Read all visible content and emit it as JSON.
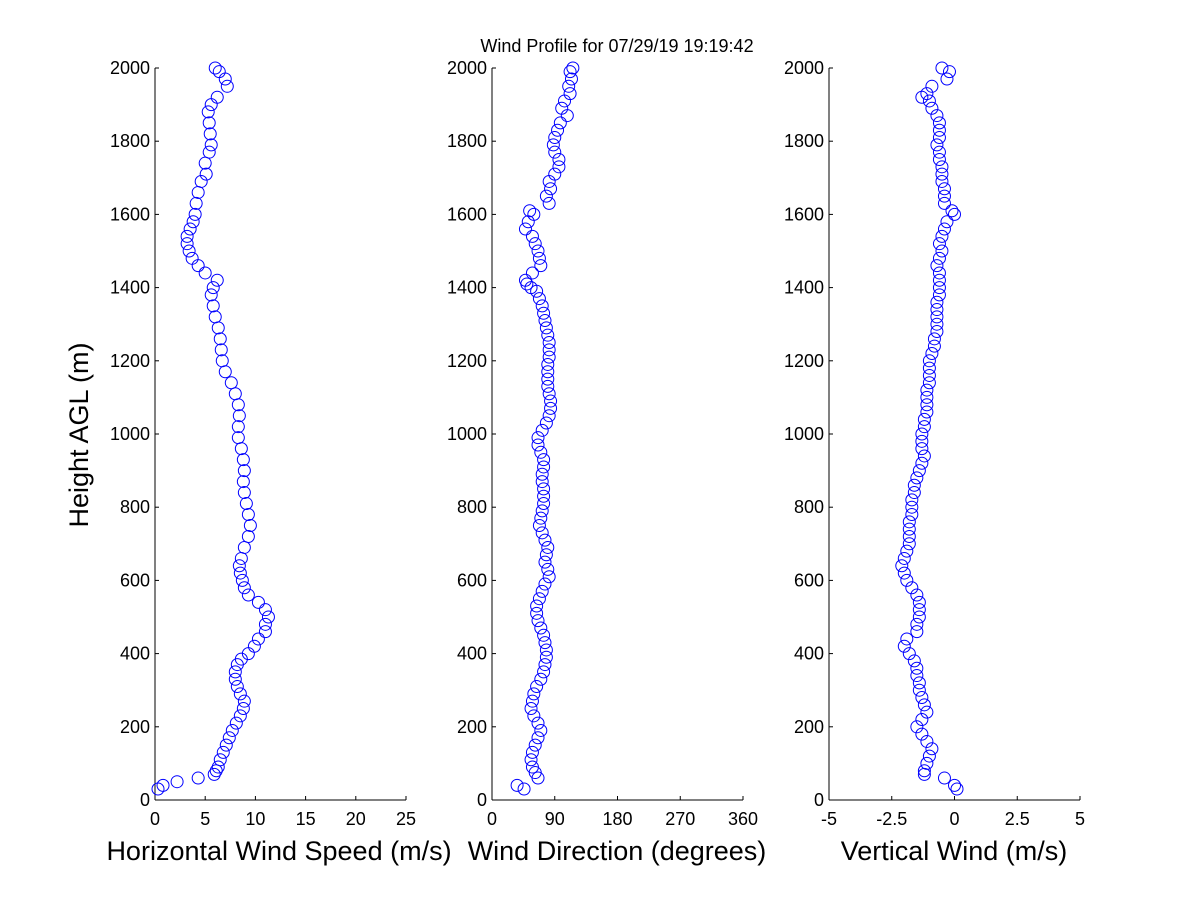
{
  "figure": {
    "title": "Wind Profile for  07/29/19 19:19:42",
    "marker_color": "#0000ff",
    "background": "#ffffff"
  },
  "chart_data": [
    {
      "type": "scatter",
      "xlabel": "Horizontal Wind Speed (m/s)",
      "ylabel": "Height AGL (m)",
      "xlim": [
        0,
        25
      ],
      "ylim": [
        0,
        2000
      ],
      "xticks": [
        0,
        5,
        10,
        15,
        20,
        25
      ],
      "xtick_labels": [
        "0",
        "5",
        "10",
        "15",
        "20",
        "25"
      ],
      "yticks": [
        0,
        200,
        400,
        600,
        800,
        1000,
        1200,
        1400,
        1600,
        1800,
        2000
      ],
      "ytick_labels": [
        "0",
        "200",
        "400",
        "600",
        "800",
        "1000",
        "1200",
        "1400",
        "1600",
        "1800",
        "2000"
      ],
      "points": [
        [
          0.3,
          30
        ],
        [
          0.8,
          40
        ],
        [
          2.2,
          50
        ],
        [
          4.3,
          60
        ],
        [
          5.9,
          70
        ],
        [
          6.1,
          80
        ],
        [
          6.3,
          90
        ],
        [
          6.5,
          110
        ],
        [
          6.8,
          130
        ],
        [
          7.1,
          150
        ],
        [
          7.4,
          170
        ],
        [
          7.7,
          190
        ],
        [
          8.1,
          210
        ],
        [
          8.5,
          230
        ],
        [
          8.8,
          250
        ],
        [
          8.9,
          270
        ],
        [
          8.5,
          290
        ],
        [
          8.2,
          310
        ],
        [
          8.0,
          330
        ],
        [
          8.0,
          350
        ],
        [
          8.2,
          370
        ],
        [
          8.6,
          385
        ],
        [
          9.3,
          400
        ],
        [
          9.9,
          420
        ],
        [
          10.3,
          440
        ],
        [
          11.0,
          460
        ],
        [
          11.0,
          480
        ],
        [
          11.3,
          500
        ],
        [
          11.0,
          520
        ],
        [
          10.3,
          540
        ],
        [
          9.3,
          560
        ],
        [
          8.9,
          580
        ],
        [
          8.7,
          600
        ],
        [
          8.5,
          620
        ],
        [
          8.4,
          640
        ],
        [
          8.6,
          660
        ],
        [
          8.9,
          690
        ],
        [
          9.3,
          720
        ],
        [
          9.5,
          750
        ],
        [
          9.3,
          780
        ],
        [
          9.1,
          810
        ],
        [
          8.9,
          840
        ],
        [
          8.8,
          870
        ],
        [
          8.9,
          900
        ],
        [
          8.8,
          930
        ],
        [
          8.6,
          960
        ],
        [
          8.3,
          990
        ],
        [
          8.3,
          1020
        ],
        [
          8.4,
          1050
        ],
        [
          8.3,
          1080
        ],
        [
          8.0,
          1110
        ],
        [
          7.6,
          1140
        ],
        [
          7.0,
          1170
        ],
        [
          6.7,
          1200
        ],
        [
          6.6,
          1230
        ],
        [
          6.5,
          1260
        ],
        [
          6.3,
          1290
        ],
        [
          6.0,
          1320
        ],
        [
          5.8,
          1350
        ],
        [
          5.6,
          1380
        ],
        [
          5.8,
          1400
        ],
        [
          6.2,
          1420
        ],
        [
          5.0,
          1440
        ],
        [
          4.3,
          1460
        ],
        [
          3.7,
          1480
        ],
        [
          3.4,
          1500
        ],
        [
          3.2,
          1520
        ],
        [
          3.2,
          1540
        ],
        [
          3.5,
          1560
        ],
        [
          3.8,
          1580
        ],
        [
          4.0,
          1600
        ],
        [
          4.1,
          1630
        ],
        [
          4.3,
          1660
        ],
        [
          4.6,
          1690
        ],
        [
          5.1,
          1710
        ],
        [
          5.0,
          1740
        ],
        [
          5.4,
          1770
        ],
        [
          5.6,
          1790
        ],
        [
          5.5,
          1820
        ],
        [
          5.4,
          1850
        ],
        [
          5.3,
          1880
        ],
        [
          5.6,
          1900
        ],
        [
          6.2,
          1920
        ],
        [
          7.2,
          1950
        ],
        [
          7.0,
          1970
        ],
        [
          6.4,
          1990
        ],
        [
          6.0,
          2000
        ]
      ]
    },
    {
      "type": "scatter",
      "xlabel": "Wind Direction (degrees)",
      "xlim": [
        0,
        360
      ],
      "ylim": [
        0,
        2000
      ],
      "xticks": [
        0,
        90,
        180,
        270,
        360
      ],
      "xtick_labels": [
        "0",
        "90",
        "180",
        "270",
        "360"
      ],
      "yticks": [
        0,
        200,
        400,
        600,
        800,
        1000,
        1200,
        1400,
        1600,
        1800,
        2000
      ],
      "ytick_labels": [
        "0",
        "200",
        "400",
        "600",
        "800",
        "1000",
        "1200",
        "1400",
        "1600",
        "1800",
        "2000"
      ],
      "points": [
        [
          36,
          40
        ],
        [
          46,
          30
        ],
        [
          66,
          60
        ],
        [
          62,
          75
        ],
        [
          58,
          90
        ],
        [
          56,
          110
        ],
        [
          58,
          130
        ],
        [
          62,
          150
        ],
        [
          66,
          170
        ],
        [
          70,
          190
        ],
        [
          66,
          210
        ],
        [
          60,
          230
        ],
        [
          56,
          250
        ],
        [
          58,
          270
        ],
        [
          60,
          290
        ],
        [
          64,
          310
        ],
        [
          70,
          330
        ],
        [
          74,
          350
        ],
        [
          76,
          370
        ],
        [
          78,
          390
        ],
        [
          78,
          410
        ],
        [
          76,
          430
        ],
        [
          74,
          450
        ],
        [
          70,
          470
        ],
        [
          66,
          490
        ],
        [
          64,
          510
        ],
        [
          64,
          530
        ],
        [
          68,
          550
        ],
        [
          72,
          570
        ],
        [
          76,
          590
        ],
        [
          82,
          610
        ],
        [
          80,
          630
        ],
        [
          76,
          650
        ],
        [
          78,
          670
        ],
        [
          80,
          690
        ],
        [
          76,
          710
        ],
        [
          72,
          730
        ],
        [
          68,
          750
        ],
        [
          70,
          770
        ],
        [
          72,
          790
        ],
        [
          74,
          810
        ],
        [
          74,
          830
        ],
        [
          74,
          850
        ],
        [
          72,
          870
        ],
        [
          72,
          890
        ],
        [
          74,
          910
        ],
        [
          74,
          930
        ],
        [
          70,
          950
        ],
        [
          66,
          970
        ],
        [
          66,
          990
        ],
        [
          72,
          1010
        ],
        [
          78,
          1030
        ],
        [
          82,
          1050
        ],
        [
          84,
          1070
        ],
        [
          84,
          1090
        ],
        [
          82,
          1110
        ],
        [
          80,
          1130
        ],
        [
          80,
          1150
        ],
        [
          80,
          1170
        ],
        [
          80,
          1190
        ],
        [
          82,
          1210
        ],
        [
          82,
          1230
        ],
        [
          82,
          1250
        ],
        [
          80,
          1270
        ],
        [
          78,
          1290
        ],
        [
          76,
          1310
        ],
        [
          74,
          1330
        ],
        [
          72,
          1350
        ],
        [
          68,
          1370
        ],
        [
          64,
          1390
        ],
        [
          56,
          1400
        ],
        [
          50,
          1410
        ],
        [
          48,
          1420
        ],
        [
          58,
          1440
        ],
        [
          70,
          1460
        ],
        [
          68,
          1480
        ],
        [
          66,
          1500
        ],
        [
          62,
          1520
        ],
        [
          58,
          1540
        ],
        [
          48,
          1560
        ],
        [
          52,
          1580
        ],
        [
          60,
          1600
        ],
        [
          54,
          1610
        ],
        [
          82,
          1630
        ],
        [
          78,
          1650
        ],
        [
          84,
          1670
        ],
        [
          82,
          1690
        ],
        [
          90,
          1710
        ],
        [
          96,
          1730
        ],
        [
          96,
          1750
        ],
        [
          90,
          1770
        ],
        [
          88,
          1790
        ],
        [
          90,
          1810
        ],
        [
          94,
          1830
        ],
        [
          98,
          1850
        ],
        [
          108,
          1870
        ],
        [
          100,
          1890
        ],
        [
          104,
          1910
        ],
        [
          112,
          1930
        ],
        [
          110,
          1950
        ],
        [
          114,
          1970
        ],
        [
          112,
          1990
        ],
        [
          116,
          2000
        ]
      ]
    },
    {
      "type": "scatter",
      "xlabel": "Vertical Wind (m/s)",
      "xlim": [
        -5,
        5
      ],
      "ylim": [
        0,
        2000
      ],
      "xticks": [
        -5,
        -2.5,
        0,
        2.5,
        5
      ],
      "xtick_labels": [
        "-5",
        "-2.5",
        "0",
        "2.5",
        "5"
      ],
      "yticks": [
        0,
        200,
        400,
        600,
        800,
        1000,
        1200,
        1400,
        1600,
        1800,
        2000
      ],
      "ytick_labels": [
        "0",
        "200",
        "400",
        "600",
        "800",
        "1000",
        "1200",
        "1400",
        "1600",
        "1800",
        "2000"
      ],
      "points": [
        [
          0.1,
          30
        ],
        [
          0.0,
          40
        ],
        [
          -0.4,
          60
        ],
        [
          -1.2,
          70
        ],
        [
          -1.2,
          80
        ],
        [
          -1.1,
          100
        ],
        [
          -1.0,
          120
        ],
        [
          -0.9,
          140
        ],
        [
          -1.1,
          160
        ],
        [
          -1.3,
          180
        ],
        [
          -1.5,
          200
        ],
        [
          -1.3,
          220
        ],
        [
          -1.1,
          240
        ],
        [
          -1.2,
          260
        ],
        [
          -1.3,
          280
        ],
        [
          -1.4,
          300
        ],
        [
          -1.4,
          320
        ],
        [
          -1.5,
          340
        ],
        [
          -1.5,
          360
        ],
        [
          -1.6,
          380
        ],
        [
          -1.8,
          400
        ],
        [
          -2.0,
          420
        ],
        [
          -1.9,
          440
        ],
        [
          -1.5,
          460
        ],
        [
          -1.5,
          480
        ],
        [
          -1.4,
          500
        ],
        [
          -1.4,
          520
        ],
        [
          -1.4,
          540
        ],
        [
          -1.5,
          560
        ],
        [
          -1.7,
          580
        ],
        [
          -1.9,
          600
        ],
        [
          -2.0,
          620
        ],
        [
          -2.1,
          640
        ],
        [
          -2.0,
          660
        ],
        [
          -1.9,
          680
        ],
        [
          -1.8,
          700
        ],
        [
          -1.8,
          720
        ],
        [
          -1.8,
          740
        ],
        [
          -1.8,
          760
        ],
        [
          -1.7,
          780
        ],
        [
          -1.7,
          800
        ],
        [
          -1.7,
          820
        ],
        [
          -1.6,
          840
        ],
        [
          -1.6,
          860
        ],
        [
          -1.5,
          880
        ],
        [
          -1.4,
          900
        ],
        [
          -1.3,
          920
        ],
        [
          -1.2,
          940
        ],
        [
          -1.3,
          960
        ],
        [
          -1.3,
          980
        ],
        [
          -1.3,
          1000
        ],
        [
          -1.2,
          1020
        ],
        [
          -1.2,
          1040
        ],
        [
          -1.1,
          1060
        ],
        [
          -1.1,
          1080
        ],
        [
          -1.1,
          1100
        ],
        [
          -1.1,
          1120
        ],
        [
          -1.0,
          1140
        ],
        [
          -1.0,
          1160
        ],
        [
          -1.0,
          1180
        ],
        [
          -1.0,
          1200
        ],
        [
          -0.9,
          1220
        ],
        [
          -0.8,
          1240
        ],
        [
          -0.8,
          1260
        ],
        [
          -0.7,
          1280
        ],
        [
          -0.7,
          1300
        ],
        [
          -0.7,
          1320
        ],
        [
          -0.7,
          1340
        ],
        [
          -0.7,
          1360
        ],
        [
          -0.6,
          1380
        ],
        [
          -0.6,
          1400
        ],
        [
          -0.6,
          1420
        ],
        [
          -0.6,
          1440
        ],
        [
          -0.7,
          1460
        ],
        [
          -0.6,
          1480
        ],
        [
          -0.5,
          1500
        ],
        [
          -0.6,
          1520
        ],
        [
          -0.5,
          1540
        ],
        [
          -0.4,
          1560
        ],
        [
          -0.3,
          1580
        ],
        [
          0.0,
          1600
        ],
        [
          -0.1,
          1610
        ],
        [
          -0.4,
          1630
        ],
        [
          -0.4,
          1650
        ],
        [
          -0.4,
          1670
        ],
        [
          -0.5,
          1690
        ],
        [
          -0.5,
          1710
        ],
        [
          -0.5,
          1730
        ],
        [
          -0.6,
          1750
        ],
        [
          -0.6,
          1770
        ],
        [
          -0.7,
          1790
        ],
        [
          -0.6,
          1810
        ],
        [
          -0.6,
          1830
        ],
        [
          -0.6,
          1850
        ],
        [
          -0.7,
          1870
        ],
        [
          -0.9,
          1890
        ],
        [
          -1.0,
          1910
        ],
        [
          -1.3,
          1920
        ],
        [
          -1.1,
          1930
        ],
        [
          -0.9,
          1950
        ],
        [
          -0.3,
          1970
        ],
        [
          -0.2,
          1990
        ],
        [
          -0.5,
          2000
        ]
      ]
    }
  ]
}
